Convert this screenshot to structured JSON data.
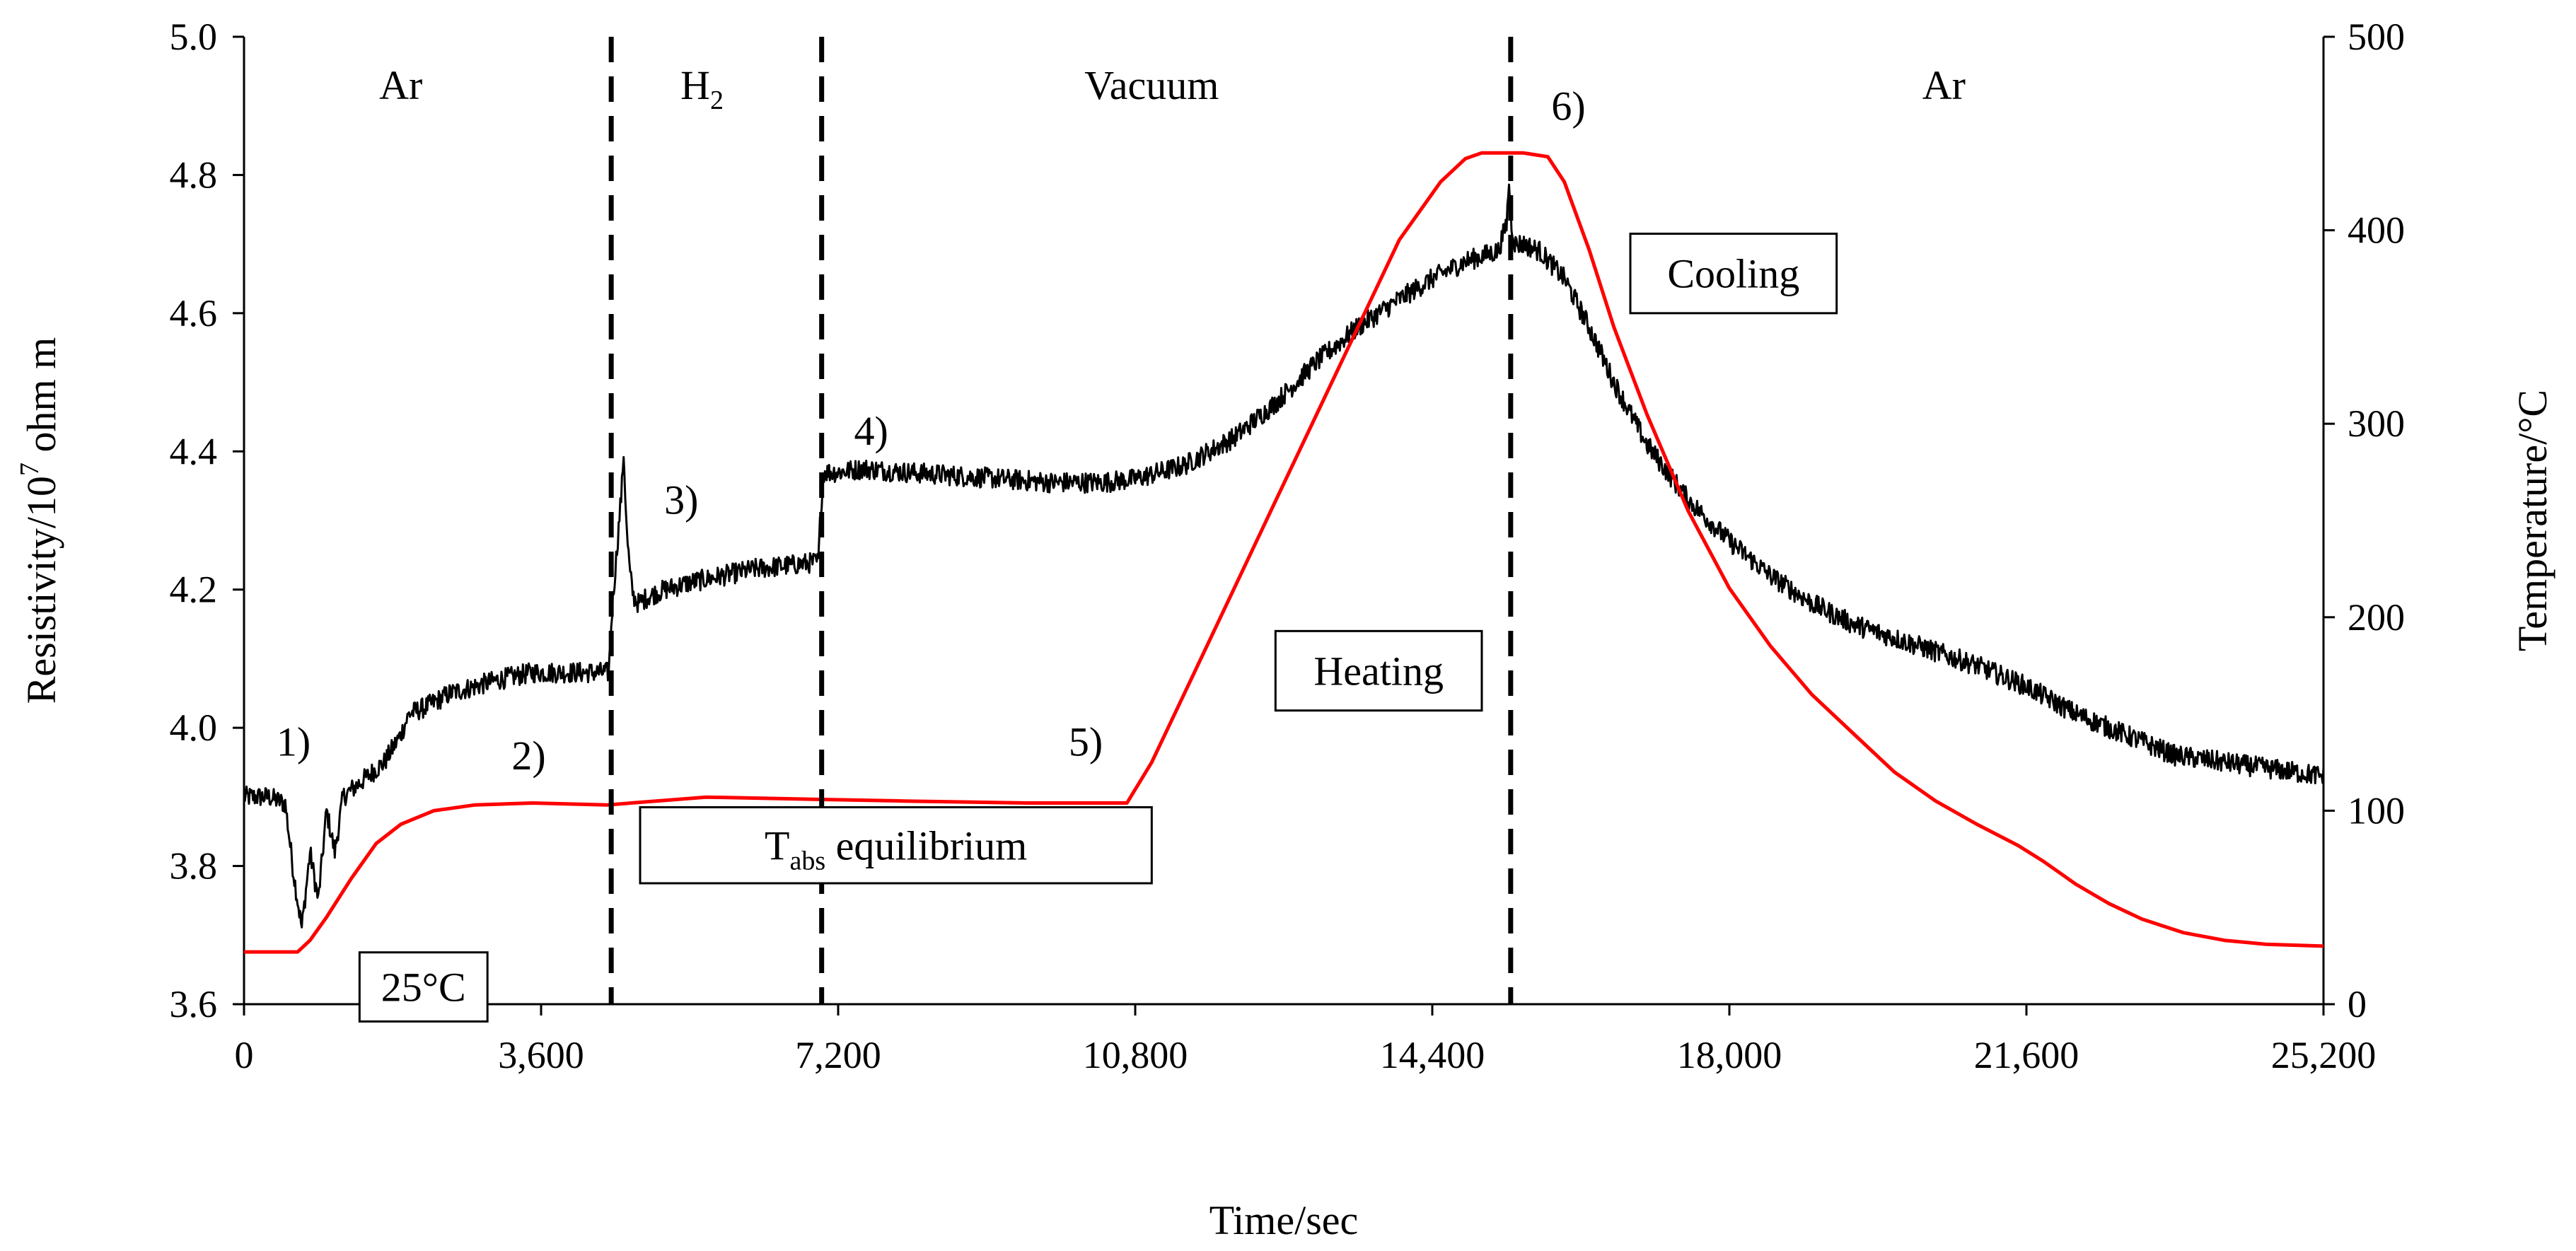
{
  "chart_data": {
    "type": "line",
    "title": "",
    "xlabel": "Time/sec",
    "ylabel_left": "Resistivity/10",
    "ylabel_left_sup": "7",
    "ylabel_left_suffix": " ohm m",
    "ylabel_right": "Temperature/°C",
    "xlim": [
      0,
      25200
    ],
    "ylim_left": [
      3.6,
      5.0
    ],
    "ylim_right": [
      0,
      500
    ],
    "x_ticks": [
      0,
      3600,
      7200,
      10800,
      14400,
      18000,
      21600,
      25200
    ],
    "x_tick_labels": [
      "0",
      "3,600",
      "7,200",
      "10,800",
      "14,400",
      "18,000",
      "21,600",
      "25,200"
    ],
    "y_left_ticks": [
      3.6,
      3.8,
      4.0,
      4.2,
      4.4,
      4.6,
      4.8,
      5.0
    ],
    "y_left_tick_labels": [
      "3.6",
      "3.8",
      "4.0",
      "4.2",
      "4.4",
      "4.6",
      "4.8",
      "5.0"
    ],
    "y_right_ticks": [
      0,
      100,
      200,
      300,
      400,
      500
    ],
    "y_right_tick_labels": [
      "0",
      "100",
      "200",
      "300",
      "400",
      "500"
    ],
    "dividers": [
      4450,
      7000,
      15350
    ],
    "regions": [
      {
        "label": "Ar",
        "sub": "",
        "x": 1900
      },
      {
        "label": "H",
        "sub": "2",
        "x": 5550
      },
      {
        "label": "Vacuum",
        "sub": "",
        "x": 11000
      },
      {
        "label": "Ar",
        "sub": "",
        "x": 20600
      }
    ],
    "markers": [
      {
        "label": "1)",
        "x": 600,
        "y": 3.98
      },
      {
        "label": "2)",
        "x": 3450,
        "y": 3.96
      },
      {
        "label": "3)",
        "x": 5300,
        "y": 4.33
      },
      {
        "label": "4)",
        "x": 7600,
        "y": 4.43
      },
      {
        "label": "5)",
        "x": 10200,
        "y": 3.98
      },
      {
        "label": "6)",
        "x": 16050,
        "y": 4.9
      }
    ],
    "boxes": [
      {
        "label": "25°C",
        "sub": "",
        "tail": "",
        "x0": 1400,
        "x1": 2950,
        "y0": 3.675,
        "y1": 3.575
      },
      {
        "label": "T",
        "sub": "abs",
        "tail": " equilibrium",
        "x0": 4800,
        "x1": 11000,
        "y0": 3.885,
        "y1": 3.775
      },
      {
        "label": "Heating",
        "sub": "",
        "tail": "",
        "x0": 12500,
        "x1": 15000,
        "y0": 4.14,
        "y1": 4.025
      },
      {
        "label": "Cooling",
        "sub": "",
        "tail": "",
        "x0": 16800,
        "x1": 19300,
        "y0": 4.715,
        "y1": 4.6
      }
    ],
    "series": [
      {
        "name": "Resistivity",
        "axis": "left",
        "color": "#000000",
        "noise": true,
        "x": [
          0,
          300,
          500,
          600,
          700,
          800,
          900,
          1000,
          1100,
          1200,
          1500,
          1700,
          1900,
          2000,
          2200,
          2500,
          2800,
          3100,
          3500,
          4000,
          4420,
          4460,
          4520,
          4580,
          4600,
          4640,
          4680,
          4720,
          4780,
          4900,
          5100,
          5400,
          5800,
          6200,
          6600,
          6960,
          6990,
          7030,
          7200,
          7500,
          8000,
          8600,
          9200,
          9800,
          10400,
          10800,
          11400,
          12000,
          12500,
          13000,
          13500,
          14000,
          14400,
          14800,
          15200,
          15300,
          15330,
          15360,
          15400,
          15500,
          15700,
          16000,
          16300,
          16600,
          17000,
          17500,
          18000,
          18500,
          19000,
          19500,
          20000,
          20500,
          21000,
          21600,
          22200,
          22800,
          23400,
          24000,
          24600,
          25200
        ],
        "y": [
          3.9,
          3.9,
          3.89,
          3.79,
          3.71,
          3.82,
          3.75,
          3.88,
          3.82,
          3.9,
          3.93,
          3.95,
          3.99,
          4.02,
          4.03,
          4.05,
          4.06,
          4.07,
          4.08,
          4.08,
          4.08,
          4.17,
          4.26,
          4.35,
          4.4,
          4.28,
          4.22,
          4.19,
          4.18,
          4.19,
          4.2,
          4.21,
          4.22,
          4.23,
          4.235,
          4.24,
          4.32,
          4.37,
          4.37,
          4.375,
          4.37,
          4.365,
          4.36,
          4.355,
          4.355,
          4.36,
          4.38,
          4.42,
          4.47,
          4.53,
          4.58,
          4.62,
          4.65,
          4.675,
          4.69,
          4.73,
          4.79,
          4.73,
          4.7,
          4.7,
          4.69,
          4.65,
          4.58,
          4.5,
          4.41,
          4.33,
          4.27,
          4.22,
          4.18,
          4.15,
          4.13,
          4.11,
          4.09,
          4.06,
          4.02,
          3.99,
          3.96,
          3.95,
          3.94,
          3.93
        ]
      },
      {
        "name": "Temperature",
        "axis": "right",
        "color": "#ff0000",
        "noise": false,
        "x": [
          0,
          500,
          650,
          800,
          1000,
          1300,
          1600,
          1900,
          2300,
          2800,
          3500,
          4400,
          5600,
          6800,
          8000,
          9500,
          10700,
          11000,
          11500,
          12000,
          12500,
          13000,
          13500,
          14000,
          14500,
          14800,
          15000,
          15200,
          15500,
          15800,
          16000,
          16300,
          16600,
          17000,
          17500,
          18000,
          18500,
          19000,
          19500,
          20000,
          20500,
          21000,
          21500,
          21800,
          22200,
          22600,
          23000,
          23500,
          24000,
          24500,
          25200
        ],
        "y": [
          27,
          27,
          27,
          33,
          45,
          65,
          83,
          93,
          100,
          103,
          104,
          103,
          107,
          106,
          105,
          104,
          104,
          125,
          170,
          215,
          260,
          305,
          350,
          395,
          425,
          437,
          440,
          440,
          440,
          438,
          425,
          390,
          350,
          305,
          255,
          215,
          185,
          160,
          140,
          120,
          105,
          93,
          82,
          74,
          62,
          52,
          44,
          37,
          33,
          31,
          30
        ]
      }
    ]
  }
}
